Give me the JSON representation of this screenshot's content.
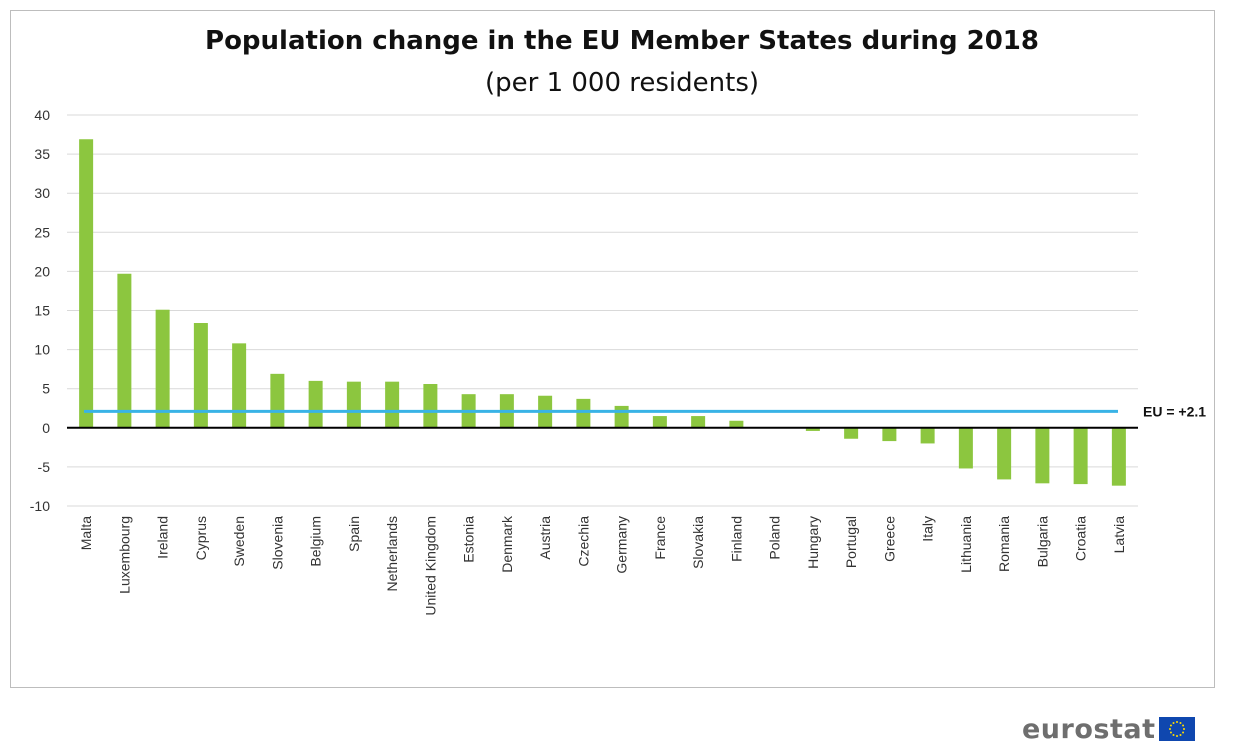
{
  "chart_data": {
    "type": "bar",
    "title": "Population change in the EU Member States during 2018",
    "subtitle": "(per 1 000 residents)",
    "xlabel": "",
    "ylabel": "",
    "ylim": [
      -10,
      40
    ],
    "yticks": [
      40,
      35,
      30,
      25,
      20,
      15,
      10,
      5,
      0,
      -5,
      -10
    ],
    "grid": true,
    "categories": [
      "Malta",
      "Luxembourg",
      "Ireland",
      "Cyprus",
      "Sweden",
      "Slovenia",
      "Belgium",
      "Spain",
      "Netherlands",
      "United Kingdom",
      "Estonia",
      "Denmark",
      "Austria",
      "Czechia",
      "Germany",
      "France",
      "Slovakia",
      "Finland",
      "Poland",
      "Hungary",
      "Portugal",
      "Greece",
      "Italy",
      "Lithuania",
      "Romania",
      "Bulgaria",
      "Croatia",
      "Latvia"
    ],
    "values": [
      36.9,
      19.7,
      15.1,
      13.4,
      10.8,
      6.9,
      6.0,
      5.9,
      5.9,
      5.6,
      4.3,
      4.3,
      4.1,
      3.7,
      2.8,
      1.5,
      1.5,
      0.9,
      0.0,
      -0.4,
      -1.4,
      -1.7,
      -2.0,
      -5.2,
      -6.6,
      -7.1,
      -7.2,
      -7.4
    ],
    "reference_line": {
      "value": 2.1,
      "label": "EU = +2.1"
    },
    "colors": {
      "bar": "#8cc63f",
      "reference": "#39b3e6",
      "zero_axis": "#000000",
      "grid": "#d9d9d9"
    }
  },
  "branding": {
    "wordmark": "eurostat",
    "flag_icon": "eu-flag-icon"
  }
}
